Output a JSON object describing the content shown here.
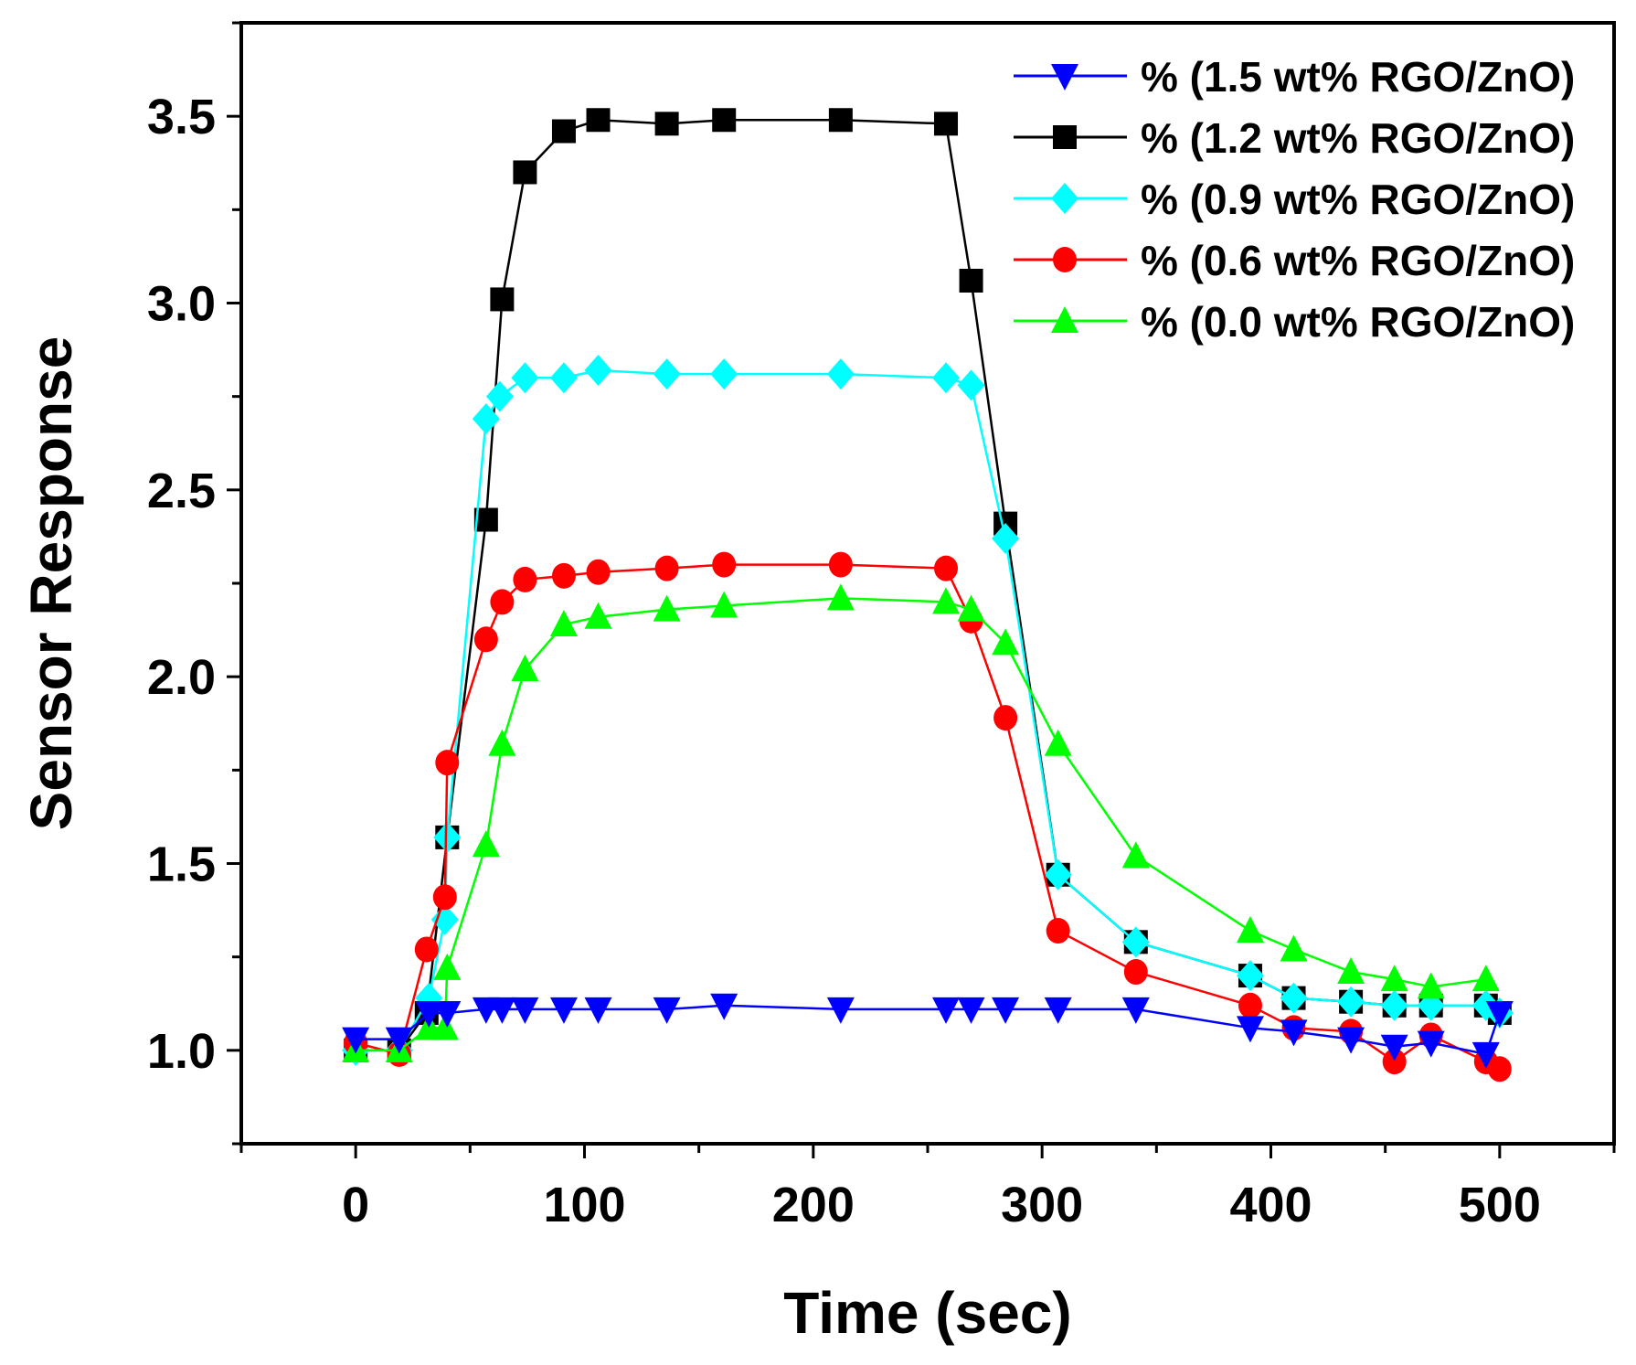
{
  "chart_data": {
    "type": "line",
    "title": "",
    "xlabel": "Time (sec)",
    "ylabel": "Sensor Response",
    "xlim": [
      -50,
      550
    ],
    "ylim": [
      0.75,
      3.75
    ],
    "xticks": [
      0,
      100,
      200,
      300,
      400,
      500
    ],
    "xtick_labels": [
      "0",
      "100",
      "200",
      "300",
      "400",
      "500"
    ],
    "yticks": [
      1.0,
      1.5,
      2.0,
      2.5,
      3.0,
      3.5
    ],
    "ytick_labels": [
      "1.0",
      "1.5",
      "2.0",
      "2.5",
      "3.0",
      "3.5"
    ],
    "grid": false,
    "legend_position": "top-right",
    "series": [
      {
        "name": "% (1.5 wt% RGO/ZnO)",
        "color": "#0000ff",
        "marker": "triangle-down",
        "x": [
          0,
          19,
          32,
          40,
          57,
          64,
          74,
          91,
          106,
          136,
          161,
          212,
          258,
          269,
          284,
          307,
          341,
          391,
          410,
          435,
          454,
          470,
          494,
          500
        ],
        "y": [
          1.03,
          1.03,
          1.1,
          1.1,
          1.11,
          1.11,
          1.11,
          1.11,
          1.11,
          1.11,
          1.12,
          1.11,
          1.11,
          1.11,
          1.11,
          1.11,
          1.11,
          1.06,
          1.05,
          1.03,
          1.01,
          1.02,
          0.99,
          1.1
        ]
      },
      {
        "name": "% (1.2 wt% RGO/ZnO)",
        "color": "#000000",
        "marker": "square",
        "x": [
          0,
          19,
          31,
          40,
          57,
          64,
          74,
          91,
          106,
          136,
          161,
          212,
          258,
          269,
          284,
          307,
          341,
          391,
          410,
          435,
          454,
          470,
          494,
          500
        ],
        "y": [
          1.0,
          1.0,
          1.1,
          1.57,
          2.42,
          3.01,
          3.35,
          3.46,
          3.49,
          3.48,
          3.49,
          3.49,
          3.48,
          3.06,
          2.41,
          1.47,
          1.29,
          1.2,
          1.14,
          1.13,
          1.12,
          1.12,
          1.12,
          1.1
        ]
      },
      {
        "name": "% (0.9 wt% RGO/ZnO)",
        "color": "#00ffff",
        "marker": "diamond",
        "x": [
          0,
          19,
          32,
          39,
          40,
          57,
          63,
          74,
          91,
          106,
          136,
          161,
          212,
          258,
          269,
          284,
          307,
          341,
          391,
          410,
          435,
          454,
          470,
          494,
          500
        ],
        "y": [
          1.0,
          1.0,
          1.14,
          1.35,
          1.57,
          2.69,
          2.75,
          2.8,
          2.8,
          2.82,
          2.81,
          2.81,
          2.81,
          2.8,
          2.78,
          2.37,
          1.47,
          1.29,
          1.2,
          1.14,
          1.13,
          1.12,
          1.12,
          1.12,
          1.1
        ]
      },
      {
        "name": "% (0.6 wt% RGO/ZnO)",
        "color": "#ff0000",
        "marker": "circle",
        "x": [
          0,
          19,
          31,
          39,
          40,
          57,
          64,
          74,
          91,
          106,
          136,
          161,
          212,
          258,
          269,
          284,
          307,
          341,
          391,
          410,
          435,
          454,
          470,
          494,
          500
        ],
        "y": [
          1.02,
          0.99,
          1.27,
          1.41,
          1.77,
          2.1,
          2.2,
          2.26,
          2.27,
          2.28,
          2.29,
          2.3,
          2.3,
          2.29,
          2.15,
          1.89,
          1.32,
          1.21,
          1.12,
          1.06,
          1.05,
          0.97,
          1.04,
          0.97,
          0.95
        ]
      },
      {
        "name": "% (0.0 wt% RGO/ZnO)",
        "color": "#00ff00",
        "marker": "triangle-up",
        "x": [
          0,
          19,
          32,
          39,
          40,
          57,
          64,
          74,
          91,
          106,
          136,
          161,
          212,
          258,
          269,
          284,
          307,
          341,
          391,
          410,
          435,
          454,
          470,
          494
        ],
        "y": [
          1.0,
          1.0,
          1.06,
          1.06,
          1.22,
          1.55,
          1.82,
          2.02,
          2.14,
          2.16,
          2.18,
          2.19,
          2.21,
          2.2,
          2.18,
          2.09,
          1.82,
          1.52,
          1.32,
          1.27,
          1.21,
          1.19,
          1.17,
          1.19
        ]
      }
    ]
  }
}
